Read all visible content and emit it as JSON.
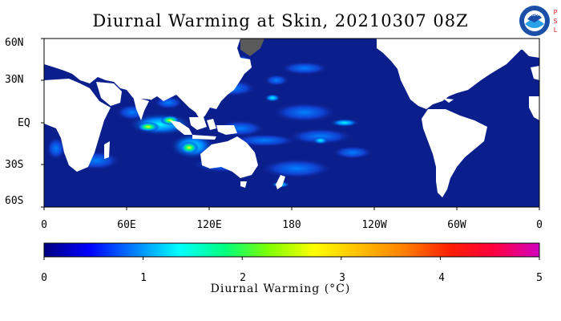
{
  "title": "Diurnal Warming at Skin, 20210307 08Z",
  "logo": {
    "name": "noaa-logo",
    "text": "NOAA",
    "side_text": [
      "P",
      "S",
      "L"
    ]
  },
  "map": {
    "projection": "cylindrical-equidistant",
    "lon_range": [
      0,
      360
    ],
    "lat_range": [
      -60,
      60
    ],
    "ocean_color": "#0b1f8c",
    "land_color": "#ffffff",
    "missing_color": "#5a5a5a",
    "lat_labels": [
      "60N",
      "30N",
      "EQ",
      "30S",
      "60S"
    ],
    "lon_labels": [
      "0",
      "60E",
      "120E",
      "180",
      "120W",
      "60W",
      "0"
    ]
  },
  "colorbar": {
    "title": "Diurnal Warming (°C)",
    "min": 0,
    "max": 5,
    "tick_labels": [
      "0",
      "1",
      "2",
      "3",
      "4",
      "5"
    ],
    "colors": [
      "#00007f",
      "#0000ff",
      "#0080ff",
      "#00ffff",
      "#00ff80",
      "#80ff00",
      "#ffff00",
      "#ffbf00",
      "#ff8000",
      "#ff2000",
      "#ff0040",
      "#d000c0"
    ]
  }
}
